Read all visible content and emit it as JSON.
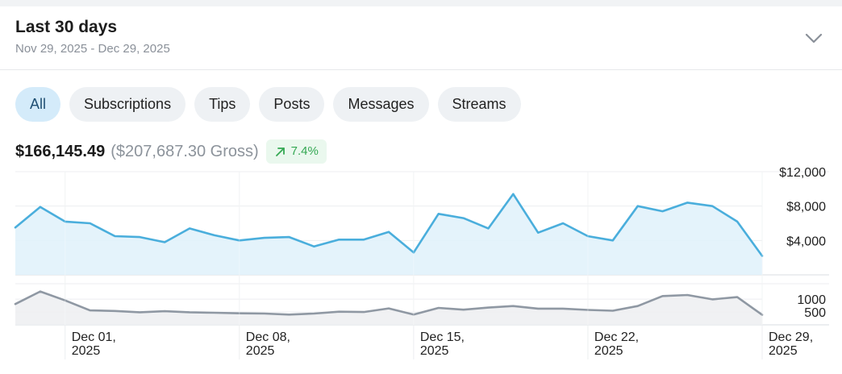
{
  "header": {
    "title": "Last 30 days",
    "date_range": "Nov 29, 2025 - Dec 29, 2025",
    "expand_icon": "chevron-down-icon"
  },
  "filters": {
    "selected": "All",
    "chips": [
      "All",
      "Subscriptions",
      "Tips",
      "Posts",
      "Messages",
      "Streams"
    ]
  },
  "summary": {
    "net": "$166,145.49",
    "gross": "($207,687.30 Gross)",
    "change": "7.4%",
    "change_icon": "arrow-up-right-icon"
  },
  "colors": {
    "earnings_line": "#4aaedc",
    "earnings_fill": "#e1f2fb",
    "count_line": "#8f98a3",
    "count_fill": "#eef0f2",
    "badge_green": "#34a853",
    "chip_active": "#d4ebfa"
  },
  "chart_data": [
    {
      "type": "area",
      "name": "earnings",
      "x": [
        "Nov 29",
        "Nov 30",
        "Dec 01",
        "Dec 02",
        "Dec 03",
        "Dec 04",
        "Dec 05",
        "Dec 06",
        "Dec 07",
        "Dec 08",
        "Dec 09",
        "Dec 10",
        "Dec 11",
        "Dec 12",
        "Dec 13",
        "Dec 14",
        "Dec 15",
        "Dec 16",
        "Dec 17",
        "Dec 18",
        "Dec 19",
        "Dec 20",
        "Dec 21",
        "Dec 22",
        "Dec 23",
        "Dec 24",
        "Dec 25",
        "Dec 26",
        "Dec 27",
        "Dec 28",
        "Dec 29"
      ],
      "values": [
        5500,
        7900,
        6200,
        6000,
        4500,
        4400,
        3800,
        5400,
        4600,
        4000,
        4300,
        4400,
        3300,
        4100,
        4100,
        5000,
        2600,
        7100,
        6600,
        5400,
        9400,
        4900,
        6000,
        4500,
        4000,
        8000,
        7400,
        8400,
        8000,
        6200,
        2200
      ],
      "yticks": [
        "$4,000",
        "$8,000",
        "$12,000"
      ],
      "ytick_values": [
        4000,
        8000,
        12000
      ],
      "ylim": [
        0,
        12000
      ],
      "grid": true
    },
    {
      "type": "area",
      "name": "count",
      "x": [
        "Nov 29",
        "Nov 30",
        "Dec 01",
        "Dec 02",
        "Dec 03",
        "Dec 04",
        "Dec 05",
        "Dec 06",
        "Dec 07",
        "Dec 08",
        "Dec 09",
        "Dec 10",
        "Dec 11",
        "Dec 12",
        "Dec 13",
        "Dec 14",
        "Dec 15",
        "Dec 16",
        "Dec 17",
        "Dec 18",
        "Dec 19",
        "Dec 20",
        "Dec 21",
        "Dec 22",
        "Dec 23",
        "Dec 24",
        "Dec 25",
        "Dec 26",
        "Dec 27",
        "Dec 28",
        "Dec 29"
      ],
      "values": [
        810,
        1300,
        950,
        560,
        540,
        490,
        530,
        490,
        470,
        450,
        440,
        400,
        440,
        510,
        500,
        640,
        400,
        660,
        590,
        670,
        730,
        630,
        630,
        580,
        550,
        730,
        1120,
        1160,
        990,
        1080,
        390
      ],
      "yticks": [
        "500",
        "1000"
      ],
      "ytick_values": [
        500,
        1000
      ],
      "ylim": [
        0,
        1600
      ],
      "grid": true
    }
  ],
  "x_axis": {
    "ticks": [
      {
        "day": "Dec 01,",
        "year": "2025",
        "index": 2
      },
      {
        "day": "Dec 08,",
        "year": "2025",
        "index": 9
      },
      {
        "day": "Dec 15,",
        "year": "2025",
        "index": 16
      },
      {
        "day": "Dec 22,",
        "year": "2025",
        "index": 23
      },
      {
        "day": "Dec 29,",
        "year": "2025",
        "index": 30
      }
    ]
  }
}
